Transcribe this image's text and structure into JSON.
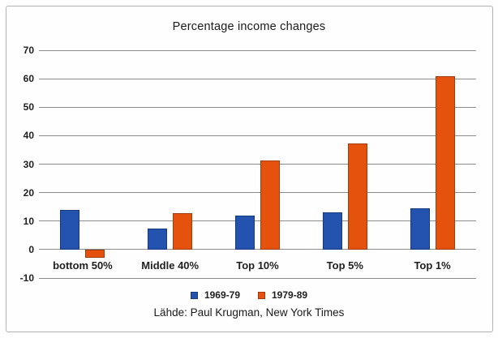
{
  "chart_data": {
    "type": "bar",
    "title": "Percentage income changes",
    "categories": [
      "bottom 50%",
      "Middle 40%",
      "Top 10%",
      "Top 5%",
      "Top 1%"
    ],
    "series": [
      {
        "name": "1969-79",
        "fill": "#2353ae",
        "border": "#16387d",
        "values": [
          14,
          7.5,
          12,
          13,
          14.5
        ]
      },
      {
        "name": "1979-89",
        "fill": "#e5520e",
        "border": "#a03c10",
        "values": [
          -3,
          12.7,
          31.3,
          37.3,
          61
        ]
      }
    ],
    "ylim": [
      -10,
      70
    ],
    "yticks": [
      70,
      60,
      50,
      40,
      30,
      20,
      10,
      0,
      -10
    ],
    "grid": "horizontal",
    "legend_position": "bottom",
    "source": "Lähde: Paul Krugman, New York Times"
  },
  "colors": {
    "gridline": "#8c8c8c",
    "text": "#1f1f1f",
    "frame_border": "#b3b3b3",
    "background": "#fefefe"
  }
}
